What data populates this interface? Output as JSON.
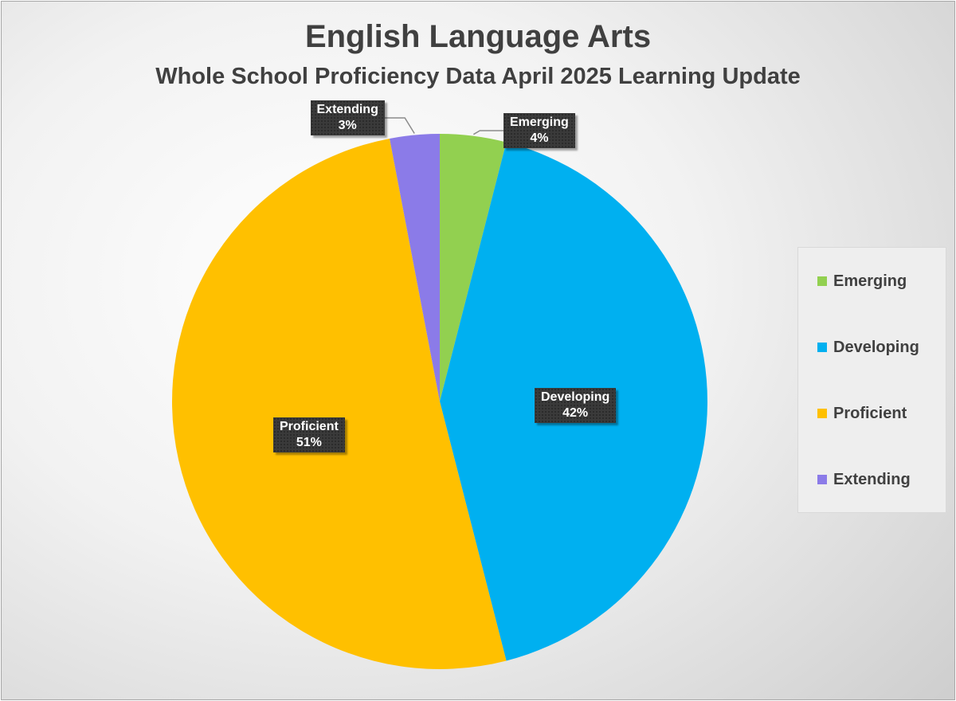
{
  "chart_data": {
    "type": "pie",
    "title": "English Language Arts",
    "subtitle": "Whole School Proficiency Data April 2025 Learning Update",
    "categories": [
      "Emerging",
      "Developing",
      "Proficient",
      "Extending"
    ],
    "values": [
      4,
      42,
      51,
      3
    ],
    "value_labels": [
      "4%",
      "42%",
      "51%",
      "3%"
    ],
    "colors": [
      "#92D050",
      "#00B0F0",
      "#FFC000",
      "#8B7BE8"
    ],
    "legend_position": "right",
    "start_angle_deg": 0,
    "direction": "clockwise"
  }
}
